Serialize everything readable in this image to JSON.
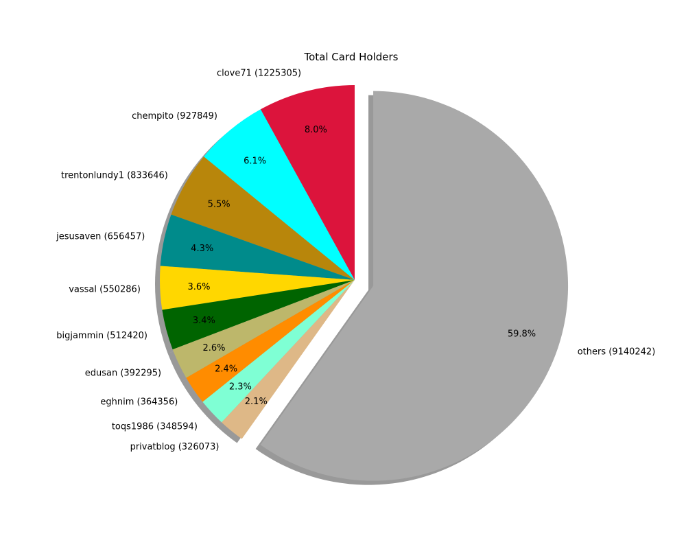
{
  "chart_data": {
    "type": "pie",
    "title": "Total Card Holders",
    "start_angle": 90,
    "direction": "counterclockwise",
    "shadow": true,
    "slices": [
      {
        "label": "clove71 (1225305)",
        "value": 1225305,
        "percent": "8.0%",
        "color": "#dc143c",
        "explode": 0
      },
      {
        "label": "chempito (927849)",
        "value": 927849,
        "percent": "6.1%",
        "color": "#00ffff",
        "explode": 0
      },
      {
        "label": "trentonlundy1 (833646)",
        "value": 833646,
        "percent": "5.5%",
        "color": "#b8860b",
        "explode": 0
      },
      {
        "label": "jesusaven (656457)",
        "value": 656457,
        "percent": "4.3%",
        "color": "#008b8b",
        "explode": 0
      },
      {
        "label": "vassal (550286)",
        "value": 550286,
        "percent": "3.6%",
        "color": "#ffd700",
        "explode": 0
      },
      {
        "label": "bigjammin (512420)",
        "value": 512420,
        "percent": "3.4%",
        "color": "#006400",
        "explode": 0
      },
      {
        "label": "edusan (392295)",
        "value": 392295,
        "percent": "2.6%",
        "color": "#bdb76b",
        "explode": 0
      },
      {
        "label": "eghnim (364356)",
        "value": 364356,
        "percent": "2.4%",
        "color": "#ff8c00",
        "explode": 0
      },
      {
        "label": "toqs1986 (348594)",
        "value": 348594,
        "percent": "2.3%",
        "color": "#7fffd4",
        "explode": 0
      },
      {
        "label": "privatblog (326073)",
        "value": 326073,
        "percent": "2.1%",
        "color": "#deb887",
        "explode": 0
      },
      {
        "label": "others (9140242)",
        "value": 9140242,
        "percent": "59.8%",
        "color": "#a9a9a9",
        "explode": 0.1
      }
    ]
  }
}
